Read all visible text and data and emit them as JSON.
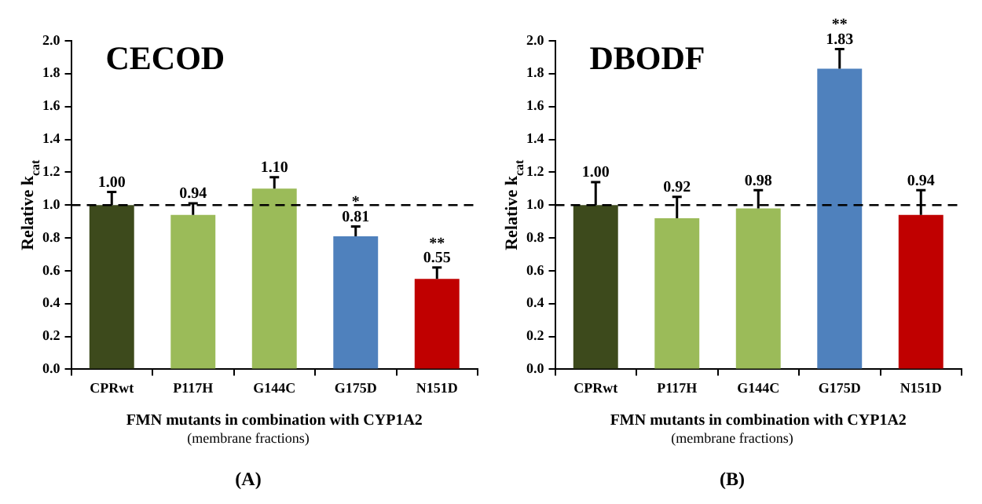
{
  "chart_data": [
    {
      "type": "bar",
      "title": "CECOD",
      "xlabel": "FMN mutants in combination with CYP1A2",
      "ylabel": "Relative k$_{cat}$",
      "categories": [
        "CPRwt",
        "P117H",
        "G144C",
        "G175D",
        "N151D"
      ],
      "values": [
        1.0,
        0.94,
        1.1,
        0.81,
        0.55
      ],
      "value_labels": [
        "1.00",
        "0.94",
        "1.10",
        "0.81",
        "0.55"
      ],
      "colors": [
        "#3d4a1c",
        "#9bbb59",
        "#9bbb59",
        "#4f81bd",
        "#c00000"
      ],
      "errors": [
        [
          1.0,
          1.08
        ],
        [
          0.94,
          1.01
        ],
        [
          1.1,
          1.17
        ],
        [
          0.81,
          0.87
        ],
        [
          0.55,
          0.62
        ]
      ],
      "ylim": [
        0,
        2
      ],
      "yticks": [
        {
          "value": 0,
          "label": "0.0"
        },
        0.2,
        0.4,
        0.6,
        0.8,
        {
          "value": 1,
          "label": "1.0"
        },
        1.2,
        1.4,
        1.6,
        1.8,
        {
          "value": 2,
          "label": "2.0"
        }
      ],
      "ref_lines": [
        {
          "axis": "y",
          "value": 1.0,
          "line_style": "dashed",
          "color": "#000000"
        }
      ],
      "annotations": [
        {
          "text": "*",
          "x": "G175D",
          "y": 0.89
        },
        {
          "text": "**",
          "x": "N151D",
          "y": 0.64
        },
        "(membrane fractions)",
        "(A)"
      ]
    },
    {
      "type": "bar",
      "title": "DBODF",
      "xlabel": "FMN mutants in combination with CYP1A2",
      "ylabel": "Relative k$_{cat}$",
      "categories": [
        "CPRwt",
        "P117H",
        "G144C",
        "G175D",
        "N151D"
      ],
      "values": [
        1.0,
        0.92,
        0.98,
        1.83,
        0.94
      ],
      "value_labels": [
        "1.00",
        "0.92",
        "0.98",
        "1.83",
        "0.94"
      ],
      "colors": [
        "#3d4a1c",
        "#9bbb59",
        "#9bbb59",
        "#4f81bd",
        "#c00000"
      ],
      "errors": [
        [
          1.0,
          1.14
        ],
        [
          0.92,
          1.05
        ],
        [
          0.98,
          1.09
        ],
        [
          1.83,
          1.95
        ],
        [
          0.94,
          1.09
        ]
      ],
      "ylim": [
        0,
        2
      ],
      "yticks": [
        {
          "value": 0,
          "label": "0.0"
        },
        0.2,
        0.4,
        0.6,
        0.8,
        {
          "value": 1,
          "label": "1.0"
        },
        1.2,
        1.4,
        1.6,
        1.8,
        {
          "value": 2,
          "label": "2.0"
        }
      ],
      "ref_lines": [
        {
          "axis": "y",
          "value": 1.0,
          "line_style": "dashed",
          "color": "#000000"
        }
      ],
      "annotations": [
        {
          "text": "**",
          "x": "G175D",
          "y": 1.97
        },
        "(membrane fractions)",
        "(B)"
      ]
    }
  ]
}
